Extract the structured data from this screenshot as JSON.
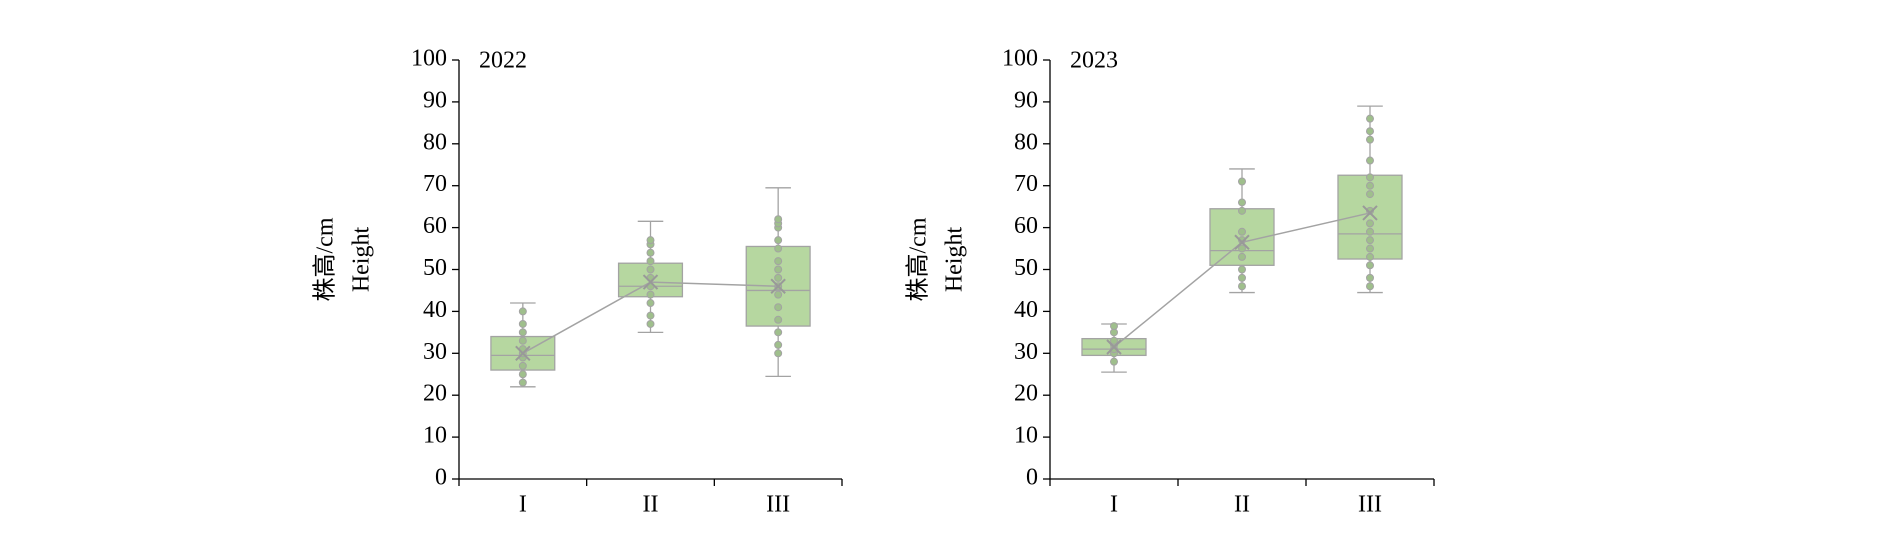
{
  "chart_data": [
    {
      "type": "box",
      "title": "2022",
      "ylabel": [
        "株高/cm",
        "Height"
      ],
      "categories": [
        "I",
        "II",
        "III"
      ],
      "ylim": [
        0,
        100
      ],
      "yticks": [
        0,
        10,
        20,
        30,
        40,
        50,
        60,
        70,
        80,
        90,
        100
      ],
      "color": "#b6d7a0",
      "edge_color": "#a3a3a3",
      "point_color": "#9fbf8c",
      "boxes": [
        {
          "min": 22,
          "q1": 26,
          "median": 29.5,
          "q3": 34,
          "max": 42,
          "mean": 30,
          "points": [
            23,
            25,
            27,
            29,
            30,
            31,
            33,
            35,
            37,
            40
          ]
        },
        {
          "min": 35,
          "q1": 43.5,
          "median": 46,
          "q3": 51.5,
          "max": 61.5,
          "mean": 47,
          "points": [
            37,
            39,
            42,
            44,
            46,
            48,
            50,
            52,
            54,
            56,
            57
          ]
        },
        {
          "min": 24.5,
          "q1": 36.5,
          "median": 45,
          "q3": 55.5,
          "max": 69.5,
          "mean": 46,
          "points": [
            30,
            32,
            35,
            38,
            41,
            44,
            46,
            48,
            50,
            52,
            55,
            57,
            60,
            61,
            62
          ]
        }
      ]
    },
    {
      "type": "box",
      "title": "2023",
      "ylabel": [
        "株高/cm",
        "Height"
      ],
      "categories": [
        "I",
        "II",
        "III"
      ],
      "ylim": [
        0,
        100
      ],
      "yticks": [
        0,
        10,
        20,
        30,
        40,
        50,
        60,
        70,
        80,
        90,
        100
      ],
      "color": "#b6d7a0",
      "edge_color": "#a3a3a3",
      "point_color": "#9fbf8c",
      "boxes": [
        {
          "min": 25.5,
          "q1": 29.5,
          "median": 31,
          "q3": 33.5,
          "max": 37,
          "mean": 31.5,
          "points": [
            28,
            30,
            31,
            32,
            33,
            35,
            36.5
          ]
        },
        {
          "min": 44.5,
          "q1": 51,
          "median": 54.5,
          "q3": 64.5,
          "max": 74,
          "mean": 56.5,
          "points": [
            46,
            48,
            50,
            53,
            55,
            57,
            59,
            64,
            66,
            71
          ]
        },
        {
          "min": 44.5,
          "q1": 52.5,
          "median": 58.5,
          "q3": 72.5,
          "max": 89,
          "mean": 63.5,
          "points": [
            46,
            48,
            51,
            53,
            55,
            57,
            59,
            61,
            64,
            68,
            70,
            72,
            76,
            81,
            83,
            86
          ]
        }
      ]
    }
  ]
}
